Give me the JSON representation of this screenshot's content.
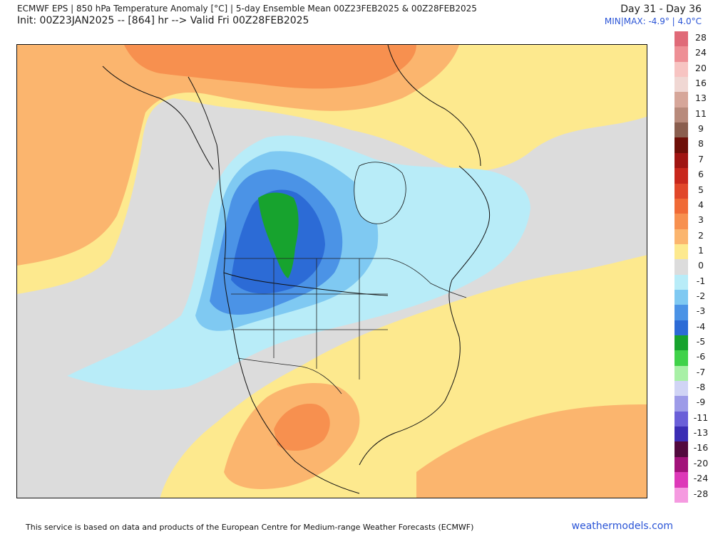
{
  "header": {
    "title_line1": "ECMWF EPS | 850 hPa Temperature Anomaly [°C] | 5-day Ensemble Mean 00Z23FEB2025 & 00Z28FEB2025",
    "title_line2": "Init: 00Z23JAN2025 -- [864] hr --> Valid Fri 00Z28FEB2025",
    "day_range": "Day 31 - Day 36",
    "minmax": "MIN|MAX: -4.9° | 4.0°C"
  },
  "legend": {
    "colors": {
      "28": "#e06a78",
      "24": "#ee8f95",
      "20": "#f7c4c2",
      "16": "#f0d7d3",
      "13": "#d6a699",
      "11": "#b88a7b",
      "9": "#8a5e4e",
      "8": "#6e0f08",
      "7": "#a01512",
      "6": "#c8271c",
      "5": "#e1472a",
      "4": "#f06a36",
      "3": "#f7904f",
      "2": "#fbb56e",
      "1": "#fde98e",
      "0": "#dcdcdc",
      "-1": "#b8ecf8",
      "-2": "#7fc9f2",
      "-3": "#4b93e6",
      "-4": "#2c6bd6",
      "-5": "#17a32e",
      "-6": "#40d24a",
      "-7": "#a8f0a6",
      "-8": "#d0d4f5",
      "-9": "#9d9be8",
      "-11": "#6a5fd8",
      "-13": "#3b2db4",
      "-16": "#52093e",
      "-20": "#a2127a",
      "-24": "#dd38b8",
      "-28": "#f59ae0"
    },
    "labels": [
      "28",
      "24",
      "20",
      "16",
      "13",
      "11",
      "9",
      "8",
      "7",
      "6",
      "5",
      "4",
      "3",
      "2",
      "1",
      "0",
      "-1",
      "-2",
      "-3",
      "-4",
      "-5",
      "-6",
      "-7",
      "-8",
      "-9",
      "-11",
      "-13",
      "-16",
      "-20",
      "-24",
      "-28"
    ]
  },
  "map": {
    "region": "North America",
    "field": "850 hPa temperature anomaly",
    "colors": {
      "frame_bg": "#dcdcdc",
      "warm1": "#fde98e",
      "warm2": "#fbb56e",
      "warm3": "#f7904f",
      "warm4": "#f06a36",
      "neutral": "#dcdcdc",
      "cool1": "#b8ecf8",
      "cool2": "#7fc9f2",
      "cool3": "#4b93e6",
      "cool4": "#2c6bd6",
      "cold5": "#17a32e",
      "coast": "#111111",
      "border": "#222222"
    }
  },
  "footer": {
    "note": "This service is based on data and products of the European Centre for Medium-range Weather Forecasts (ECMWF)",
    "brand": "weathermodels.com"
  }
}
